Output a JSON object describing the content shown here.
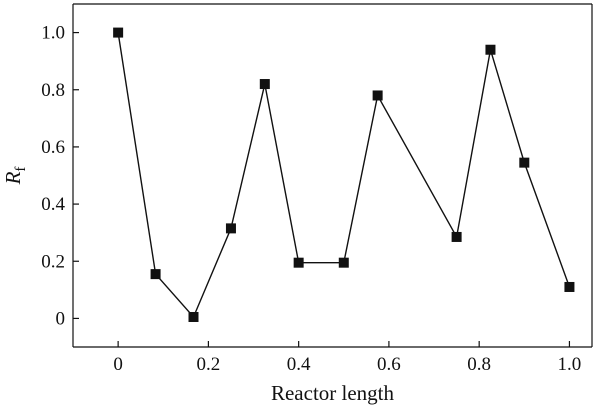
{
  "chart_data": {
    "type": "line",
    "title": "",
    "xlabel": "Reactor length",
    "ylabel_main": "R",
    "ylabel_sub": "f",
    "xlim": [
      -0.1,
      1.05
    ],
    "ylim": [
      -0.1,
      1.1
    ],
    "grid": false,
    "x_ticks": [
      0,
      0.2,
      0.4,
      0.6,
      0.8,
      1.0
    ],
    "x_tick_labels": [
      "0",
      "0.2",
      "0.4",
      "0.6",
      "0.8",
      "1.0"
    ],
    "y_ticks": [
      0,
      0.2,
      0.4,
      0.6,
      0.8,
      1.0
    ],
    "y_tick_labels": [
      "0",
      "0.2",
      "0.4",
      "0.6",
      "0.8",
      "1.0"
    ],
    "series": [
      {
        "marker": "square",
        "color": "#111111",
        "x": [
          0,
          0.083,
          0.167,
          0.25,
          0.325,
          0.4,
          0.5,
          0.575,
          0.75,
          0.825,
          0.9,
          1.0
        ],
        "y": [
          1.0,
          0.155,
          0.005,
          0.315,
          0.82,
          0.195,
          0.195,
          0.78,
          0.285,
          0.94,
          0.545,
          0.11
        ]
      }
    ]
  }
}
